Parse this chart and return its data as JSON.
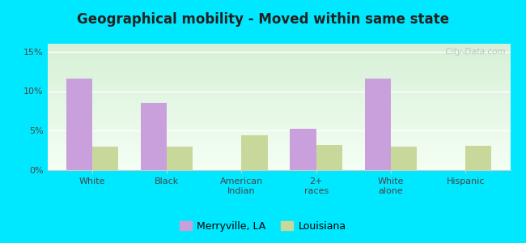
{
  "title": "Geographical mobility - Moved within same state",
  "categories": [
    "White",
    "Black",
    "American\nIndian",
    "2+\nraces",
    "White\nalone",
    "Hispanic"
  ],
  "merryville_values": [
    11.6,
    8.5,
    0,
    5.2,
    11.6,
    0
  ],
  "louisiana_values": [
    3.0,
    3.0,
    4.4,
    3.2,
    3.0,
    3.1
  ],
  "merryville_color": "#c9a0dc",
  "louisiana_color": "#c8d89a",
  "background_outer": "#00e8ff",
  "ylim": [
    0,
    16
  ],
  "yticks": [
    0,
    5,
    10,
    15
  ],
  "ytick_labels": [
    "0%",
    "5%",
    "10%",
    "15%"
  ],
  "legend_labels": [
    "Merryville, LA",
    "Louisiana"
  ],
  "bar_width": 0.35,
  "watermark": "  City-Data.com"
}
